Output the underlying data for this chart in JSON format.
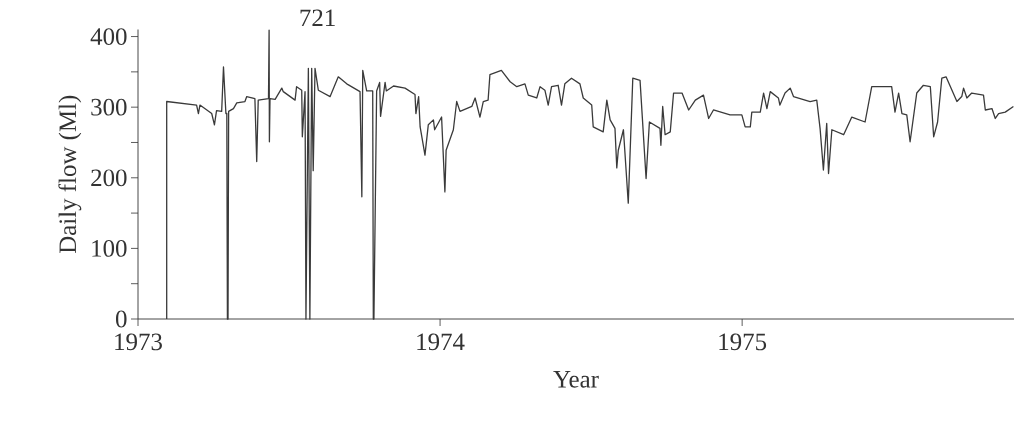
{
  "chart_data": {
    "type": "line",
    "xlabel": "Year",
    "ylabel": "Daily flow (Ml)",
    "annotations": [
      "721"
    ],
    "xlim": [
      1973,
      1975.9
    ],
    "xticks": [
      1973,
      1974,
      1975
    ],
    "ylim": [
      0,
      410
    ],
    "yticks": [
      0,
      {
        "value": 50,
        "label": null
      },
      100,
      {
        "value": 150,
        "label": null
      },
      200,
      {
        "value": 250,
        "label": null
      },
      300,
      {
        "value": 350,
        "label": null
      },
      400
    ],
    "series": [
      {
        "color": "#3a3a3a",
        "x": [
          1973.095,
          1973.095,
          1973.194,
          1973.2,
          1973.205,
          1973.244,
          1973.253,
          1973.26,
          1973.277,
          1973.283,
          1973.291,
          1973.294,
          1973.296,
          1973.298,
          1973.3,
          1973.316,
          1973.327,
          1973.354,
          1973.36,
          1973.387,
          1973.393,
          1973.398,
          1973.432,
          1973.434,
          1973.435,
          1973.437,
          1973.454,
          1973.476,
          1973.481,
          1973.52,
          1973.525,
          1973.542,
          1973.544,
          1973.553,
          1973.556,
          1973.564,
          1973.569,
          1973.575,
          1973.58,
          1973.586,
          1973.597,
          1973.636,
          1973.663,
          1973.691,
          1973.735,
          1973.741,
          1973.744,
          1973.757,
          1973.777,
          1973.779,
          1973.781,
          1973.79,
          1973.8,
          1973.803,
          1973.818,
          1973.822,
          1973.846,
          1973.884,
          1973.917,
          1973.92,
          1973.929,
          1973.934,
          1973.95,
          1973.961,
          1973.978,
          1973.982,
          1974.005,
          1974.016,
          1974.02,
          1974.044,
          1974.055,
          1974.066,
          1974.105,
          1974.116,
          1974.132,
          1974.143,
          1974.159,
          1974.165,
          1974.203,
          1974.232,
          1974.254,
          1974.281,
          1974.292,
          1974.32,
          1974.331,
          1974.347,
          1974.358,
          1974.369,
          1974.391,
          1974.402,
          1974.413,
          1974.435,
          1974.463,
          1974.474,
          1974.502,
          1974.507,
          1974.54,
          1974.552,
          1974.563,
          1974.579,
          1974.585,
          1974.59,
          1974.607,
          1974.623,
          1974.638,
          1974.662,
          1974.682,
          1974.693,
          1974.728,
          1974.731,
          1974.737,
          1974.745,
          1974.762,
          1974.773,
          1974.801,
          1974.823,
          1974.845,
          1974.872,
          1974.889,
          1974.905,
          1974.96,
          1974.999,
          1975.01,
          1975.027,
          1975.032,
          1975.06,
          1975.071,
          1975.082,
          1975.093,
          1975.12,
          1975.125,
          1975.142,
          1975.159,
          1975.17,
          1975.225,
          1975.247,
          1975.258,
          1975.269,
          1975.28,
          1975.286,
          1975.297,
          1975.336,
          1975.363,
          1975.407,
          1975.429,
          1975.495,
          1975.506,
          1975.518,
          1975.529,
          1975.545,
          1975.556,
          1975.578,
          1975.6,
          1975.623,
          1975.634,
          1975.647,
          1975.661,
          1975.675,
          1975.711,
          1975.727,
          1975.733,
          1975.744,
          1975.76,
          1975.799,
          1975.805,
          1975.827,
          1975.838,
          1975.849,
          1975.871,
          1975.898
        ],
        "values": [
          0,
          308,
          303,
          291,
          303,
          291,
          275,
          295,
          294,
          357,
          291,
          291,
          0,
          0,
          294,
          298,
          306,
          308,
          315,
          312,
          223,
          310,
          312,
          409,
          251,
          312,
          311,
          327,
          322,
          310,
          329,
          324,
          258,
          322,
          0,
          355,
          0,
          355,
          210,
          355,
          324,
          315,
          343,
          333,
          322,
          173,
          352,
          323,
          323,
          0,
          0,
          323,
          335,
          287,
          335,
          323,
          330,
          327,
          318,
          291,
          315,
          272,
          232,
          275,
          282,
          268,
          286,
          180,
          239,
          268,
          308,
          294,
          301,
          313,
          286,
          308,
          310,
          346,
          352,
          336,
          329,
          333,
          317,
          313,
          329,
          324,
          303,
          329,
          331,
          303,
          333,
          341,
          333,
          313,
          303,
          272,
          265,
          310,
          282,
          270,
          214,
          239,
          268,
          164,
          341,
          338,
          199,
          279,
          270,
          246,
          301,
          261,
          265,
          320,
          320,
          296,
          310,
          317,
          284,
          296,
          289,
          289,
          272,
          272,
          293,
          293,
          320,
          298,
          322,
          313,
          303,
          320,
          327,
          315,
          308,
          310,
          270,
          211,
          277,
          206,
          268,
          261,
          286,
          279,
          329,
          329,
          293,
          320,
          291,
          289,
          251,
          320,
          331,
          329,
          258,
          279,
          341,
          343,
          308,
          315,
          327,
          313,
          320,
          317,
          296,
          298,
          284,
          291,
          293,
          301
        ]
      }
    ]
  }
}
